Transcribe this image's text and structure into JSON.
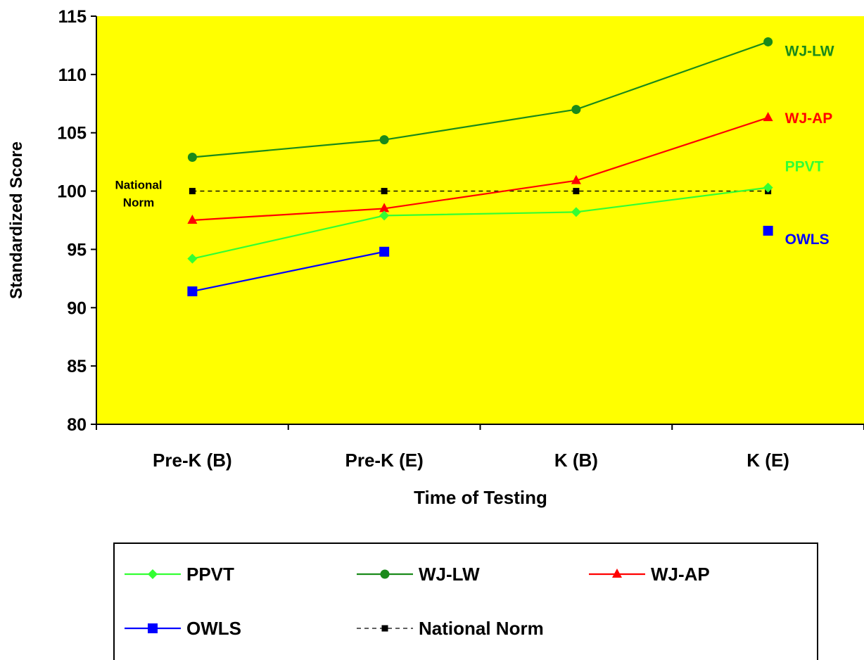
{
  "chart_data": {
    "type": "line",
    "title": "",
    "xlabel": "Time of Testing",
    "ylabel": "Standardized Score",
    "categories": [
      "Pre-K (B)",
      "Pre-K (E)",
      "K (B)",
      "K (E)"
    ],
    "ylim": [
      80,
      115
    ],
    "yticks": [
      80,
      85,
      90,
      95,
      100,
      105,
      110,
      115
    ],
    "plot_background": "#ffff00",
    "grid": false,
    "legend_position": "bottom",
    "series": [
      {
        "name": "PPVT",
        "values": [
          94.2,
          97.9,
          98.2,
          100.3
        ],
        "color": "#33ff33",
        "marker": "diamond",
        "dashed": false,
        "end_label": "PPVT"
      },
      {
        "name": "WJ-LW",
        "values": [
          102.9,
          104.4,
          107.0,
          112.8
        ],
        "color": "#1a8a1a",
        "marker": "circle",
        "dashed": false,
        "end_label": "WJ-LW"
      },
      {
        "name": "WJ-AP",
        "values": [
          97.5,
          98.5,
          100.9,
          106.3
        ],
        "color": "#ff0000",
        "marker": "triangle",
        "dashed": false,
        "end_label": "WJ-AP"
      },
      {
        "name": "OWLS",
        "values": [
          91.4,
          94.8,
          null,
          96.6
        ],
        "color": "#0000ff",
        "marker": "square",
        "dashed": false,
        "end_label": "OWLS"
      },
      {
        "name": "National Norm",
        "values": [
          100,
          100,
          100,
          100
        ],
        "color": "#000000",
        "marker": "small-square",
        "dashed": true,
        "end_label": ""
      }
    ],
    "annotations": [
      {
        "text_lines": [
          "National",
          "Norm"
        ],
        "y": 100,
        "color": "#000000"
      }
    ]
  }
}
